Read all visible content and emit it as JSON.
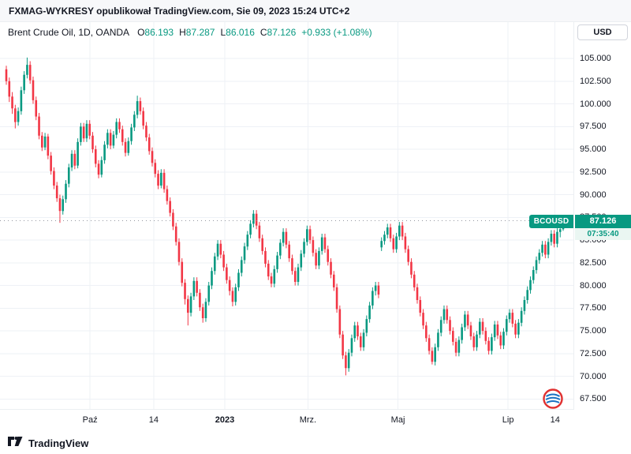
{
  "header": {
    "text": "FXMAG-WYKRESY opublikował TradingView.com, Sie 09, 2023 15:24 UTC+2"
  },
  "legend": {
    "symbol_title": "Brent Crude Oil, 1D, OANDA",
    "o_label": "O",
    "o_value": "86.193",
    "h_label": "H",
    "h_value": "87.287",
    "l_label": "L",
    "l_value": "86.016",
    "c_label": "C",
    "c_value": "87.126",
    "change": "+0.933 (+1.08%)"
  },
  "price_axis": {
    "currency": "USD",
    "ticks": [
      "105.000",
      "102.500",
      "100.000",
      "97.500",
      "95.000",
      "92.500",
      "90.000",
      "87.500",
      "85.000",
      "82.500",
      "80.000",
      "77.500",
      "75.000",
      "72.500",
      "70.000",
      "67.500"
    ]
  },
  "time_axis": {
    "labels": [
      {
        "text": "Paź",
        "x": 0.157,
        "bold": false
      },
      {
        "text": "14",
        "x": 0.268,
        "bold": false
      },
      {
        "text": "2023",
        "x": 0.392,
        "bold": true
      },
      {
        "text": "Mrz.",
        "x": 0.537,
        "bold": false
      },
      {
        "text": "Maj",
        "x": 0.694,
        "bold": false
      },
      {
        "text": "Lip",
        "x": 0.886,
        "bold": false
      },
      {
        "text": "14",
        "x": 0.968,
        "bold": false
      }
    ]
  },
  "price_label": {
    "symbol": "BCOUSD",
    "price": "87.126",
    "countdown": "07:35:40"
  },
  "footer": {
    "brand": "TradingView"
  },
  "colors": {
    "up": "#089981",
    "down": "#f23645",
    "grid": "#eef1f6",
    "last_line": "#9598a1"
  },
  "chart_data": {
    "type": "candlestick",
    "title": "Brent Crude Oil",
    "symbol": "BCOUSD",
    "interval": "1D",
    "exchange": "OANDA",
    "currency": "USD",
    "last_ohlc": {
      "open": 86.193,
      "high": 87.287,
      "low": 86.016,
      "close": 87.126,
      "change": 0.933,
      "change_pct": 1.08
    },
    "last_price": 87.126,
    "price_min": 66.4,
    "price_max": 109.0,
    "grid_step": 2.5,
    "ylim": [
      67.5,
      105.0
    ],
    "x_range_labels": [
      "Paź",
      "14",
      "2023",
      "Mrz.",
      "Maj",
      "Lip",
      "14"
    ],
    "candles": [
      [
        103.8,
        104.2,
        102.1,
        102.5
      ],
      [
        102.5,
        102.9,
        100.2,
        100.8
      ],
      [
        100.8,
        101.3,
        98.9,
        99.5
      ],
      [
        99.5,
        99.9,
        97.3,
        98.0
      ],
      [
        98.0,
        99.6,
        97.6,
        99.2
      ],
      [
        99.2,
        101.9,
        98.8,
        101.5
      ],
      [
        101.5,
        103.6,
        101.1,
        103.2
      ],
      [
        103.2,
        105.1,
        102.8,
        104.3
      ],
      [
        104.3,
        104.7,
        102.2,
        102.6
      ],
      [
        102.6,
        103.0,
        100.0,
        100.4
      ],
      [
        100.4,
        100.8,
        98.2,
        98.6
      ],
      [
        98.6,
        99.0,
        96.1,
        96.5
      ],
      [
        96.5,
        96.9,
        94.8,
        95.2
      ],
      [
        95.2,
        96.8,
        94.9,
        96.4
      ],
      [
        96.4,
        96.7,
        93.9,
        94.3
      ],
      [
        94.3,
        94.7,
        92.2,
        92.6
      ],
      [
        92.6,
        93.0,
        90.6,
        91.0
      ],
      [
        91.0,
        91.4,
        89.2,
        89.6
      ],
      [
        89.6,
        90.0,
        86.9,
        88.2
      ],
      [
        88.2,
        89.9,
        87.8,
        89.5
      ],
      [
        89.5,
        91.6,
        89.1,
        91.2
      ],
      [
        91.2,
        93.4,
        90.8,
        93.0
      ],
      [
        93.0,
        94.9,
        92.6,
        94.5
      ],
      [
        94.5,
        94.9,
        92.8,
        93.2
      ],
      [
        93.2,
        96.2,
        92.9,
        95.8
      ],
      [
        95.8,
        97.9,
        95.4,
        97.5
      ],
      [
        97.5,
        97.9,
        95.8,
        96.2
      ],
      [
        96.2,
        98.2,
        95.8,
        97.8
      ],
      [
        97.8,
        98.2,
        96.1,
        96.5
      ],
      [
        96.5,
        96.9,
        94.6,
        95.0
      ],
      [
        95.0,
        95.4,
        93.0,
        93.4
      ],
      [
        93.4,
        93.8,
        91.8,
        92.2
      ],
      [
        92.2,
        94.2,
        91.9,
        93.8
      ],
      [
        93.8,
        95.9,
        93.4,
        95.5
      ],
      [
        95.5,
        97.2,
        95.1,
        96.8
      ],
      [
        96.8,
        97.2,
        95.0,
        95.4
      ],
      [
        95.4,
        97.0,
        95.1,
        96.6
      ],
      [
        96.6,
        98.4,
        96.2,
        98.0
      ],
      [
        98.0,
        98.4,
        96.8,
        97.2
      ],
      [
        97.2,
        97.6,
        95.4,
        95.8
      ],
      [
        95.8,
        96.2,
        94.2,
        94.6
      ],
      [
        94.6,
        96.3,
        94.3,
        95.9
      ],
      [
        95.9,
        97.8,
        95.5,
        97.4
      ],
      [
        97.4,
        99.2,
        97.0,
        98.8
      ],
      [
        98.8,
        100.9,
        98.4,
        100.3
      ],
      [
        100.3,
        100.7,
        98.8,
        99.2
      ],
      [
        99.2,
        99.6,
        97.2,
        97.6
      ],
      [
        97.6,
        98.0,
        95.9,
        96.3
      ],
      [
        96.3,
        96.7,
        94.4,
        94.8
      ],
      [
        94.8,
        95.2,
        93.1,
        93.5
      ],
      [
        93.5,
        93.9,
        91.9,
        92.3
      ],
      [
        92.3,
        92.7,
        90.6,
        91.0
      ],
      [
        91.0,
        92.8,
        90.7,
        92.4
      ],
      [
        92.4,
        92.8,
        90.2,
        90.6
      ],
      [
        90.6,
        91.0,
        88.9,
        89.3
      ],
      [
        89.3,
        89.7,
        87.6,
        88.0
      ],
      [
        88.0,
        88.4,
        86.1,
        86.5
      ],
      [
        86.5,
        86.9,
        84.4,
        84.8
      ],
      [
        84.8,
        85.2,
        82.2,
        82.6
      ],
      [
        82.6,
        83.0,
        79.9,
        80.3
      ],
      [
        80.3,
        80.7,
        77.9,
        78.5
      ],
      [
        78.5,
        78.9,
        75.6,
        77.0
      ],
      [
        77.0,
        79.2,
        76.6,
        78.8
      ],
      [
        78.8,
        80.9,
        78.4,
        80.5
      ],
      [
        80.5,
        80.9,
        78.8,
        79.2
      ],
      [
        79.2,
        79.6,
        77.2,
        77.6
      ],
      [
        77.6,
        78.0,
        75.9,
        76.4
      ],
      [
        76.4,
        78.6,
        76.0,
        78.2
      ],
      [
        78.2,
        80.4,
        77.8,
        80.0
      ],
      [
        80.0,
        82.0,
        79.6,
        81.6
      ],
      [
        81.6,
        83.6,
        81.2,
        83.2
      ],
      [
        83.2,
        85.0,
        82.8,
        84.6
      ],
      [
        84.6,
        85.0,
        83.0,
        83.4
      ],
      [
        83.4,
        83.8,
        81.6,
        82.0
      ],
      [
        82.0,
        82.4,
        80.2,
        80.6
      ],
      [
        80.6,
        81.0,
        78.9,
        79.4
      ],
      [
        79.4,
        79.8,
        77.7,
        78.2
      ],
      [
        78.2,
        80.2,
        77.8,
        79.8
      ],
      [
        79.8,
        81.8,
        79.4,
        81.4
      ],
      [
        81.4,
        83.2,
        81.0,
        82.8
      ],
      [
        82.8,
        84.7,
        82.4,
        84.3
      ],
      [
        84.3,
        86.0,
        83.9,
        85.6
      ],
      [
        85.6,
        87.2,
        85.2,
        86.8
      ],
      [
        86.8,
        88.3,
        86.4,
        87.9
      ],
      [
        87.9,
        88.3,
        86.2,
        86.6
      ],
      [
        86.6,
        87.0,
        84.8,
        85.2
      ],
      [
        85.2,
        85.6,
        83.4,
        83.8
      ],
      [
        83.8,
        84.2,
        82.0,
        82.4
      ],
      [
        82.4,
        82.8,
        80.6,
        81.0
      ],
      [
        81.0,
        81.4,
        79.8,
        80.2
      ],
      [
        80.2,
        82.2,
        79.8,
        81.8
      ],
      [
        81.8,
        83.7,
        81.4,
        83.3
      ],
      [
        83.3,
        85.1,
        82.9,
        84.7
      ],
      [
        84.7,
        86.3,
        84.3,
        85.9
      ],
      [
        85.9,
        86.3,
        84.1,
        84.5
      ],
      [
        84.5,
        84.9,
        82.6,
        83.0
      ],
      [
        83.0,
        83.4,
        81.2,
        81.6
      ],
      [
        81.6,
        82.0,
        80.0,
        80.4
      ],
      [
        80.4,
        82.4,
        80.0,
        82.0
      ],
      [
        82.0,
        83.9,
        81.6,
        83.5
      ],
      [
        83.5,
        85.2,
        83.1,
        84.8
      ],
      [
        84.8,
        86.6,
        84.4,
        86.2
      ],
      [
        86.2,
        86.6,
        84.6,
        85.0
      ],
      [
        85.0,
        85.4,
        83.2,
        83.6
      ],
      [
        83.6,
        84.0,
        81.8,
        82.2
      ],
      [
        82.2,
        84.2,
        81.8,
        83.8
      ],
      [
        83.8,
        85.7,
        83.4,
        85.3
      ],
      [
        85.3,
        85.7,
        83.6,
        84.0
      ],
      [
        84.0,
        84.4,
        82.2,
        82.6
      ],
      [
        82.6,
        83.0,
        80.8,
        81.2
      ],
      [
        81.2,
        81.6,
        79.4,
        79.8
      ],
      [
        79.8,
        80.2,
        77.0,
        77.4
      ],
      [
        77.4,
        77.8,
        74.2,
        74.6
      ],
      [
        74.6,
        75.0,
        71.9,
        72.3
      ],
      [
        72.3,
        72.7,
        70.1,
        70.9
      ],
      [
        70.9,
        73.0,
        70.5,
        72.6
      ],
      [
        72.6,
        74.6,
        72.2,
        74.2
      ],
      [
        74.2,
        76.0,
        73.8,
        75.6
      ],
      [
        75.6,
        76.0,
        74.0,
        74.4
      ],
      [
        74.4,
        74.8,
        72.8,
        73.2
      ],
      [
        73.2,
        75.2,
        72.8,
        74.8
      ],
      [
        74.8,
        76.7,
        74.4,
        76.3
      ],
      [
        76.3,
        78.2,
        75.9,
        77.8
      ],
      [
        77.8,
        79.8,
        77.4,
        79.4
      ],
      [
        79.4,
        80.4,
        78.9,
        80.0
      ],
      [
        80.0,
        80.4,
        78.6,
        79.0
      ],
      [
        84.2,
        85.3,
        83.8,
        84.9
      ],
      [
        84.9,
        86.0,
        84.5,
        85.6
      ],
      [
        85.6,
        86.8,
        85.2,
        86.4
      ],
      [
        86.4,
        86.8,
        84.8,
        85.2
      ],
      [
        85.2,
        85.6,
        83.6,
        84.0
      ],
      [
        84.0,
        85.8,
        83.6,
        85.4
      ],
      [
        85.4,
        87.0,
        85.0,
        86.6
      ],
      [
        86.6,
        87.0,
        85.0,
        85.4
      ],
      [
        85.4,
        85.8,
        83.6,
        84.0
      ],
      [
        84.0,
        84.4,
        82.2,
        82.6
      ],
      [
        82.6,
        83.0,
        80.8,
        81.2
      ],
      [
        81.2,
        81.6,
        79.4,
        79.8
      ],
      [
        79.8,
        80.2,
        78.0,
        78.4
      ],
      [
        78.4,
        78.8,
        76.6,
        77.0
      ],
      [
        77.0,
        77.4,
        75.2,
        75.6
      ],
      [
        75.6,
        76.0,
        73.8,
        74.2
      ],
      [
        74.2,
        74.6,
        72.4,
        72.8
      ],
      [
        72.8,
        73.2,
        71.3,
        71.6
      ],
      [
        71.6,
        73.6,
        71.2,
        73.2
      ],
      [
        73.2,
        75.2,
        72.8,
        74.8
      ],
      [
        74.8,
        76.6,
        74.4,
        76.2
      ],
      [
        76.2,
        77.8,
        75.8,
        77.4
      ],
      [
        77.4,
        77.8,
        75.8,
        76.2
      ],
      [
        76.2,
        76.6,
        74.6,
        75.0
      ],
      [
        75.0,
        75.4,
        73.4,
        73.8
      ],
      [
        73.8,
        74.2,
        72.2,
        72.6
      ],
      [
        72.6,
        74.4,
        72.2,
        74.0
      ],
      [
        74.0,
        75.8,
        73.6,
        75.4
      ],
      [
        75.4,
        77.2,
        75.0,
        76.8
      ],
      [
        76.8,
        77.2,
        75.2,
        75.6
      ],
      [
        75.6,
        76.0,
        74.0,
        74.4
      ],
      [
        74.4,
        74.8,
        72.8,
        73.2
      ],
      [
        73.2,
        75.0,
        72.8,
        74.6
      ],
      [
        74.6,
        76.4,
        74.2,
        76.0
      ],
      [
        76.0,
        76.4,
        74.6,
        75.0
      ],
      [
        75.0,
        75.4,
        73.5,
        73.9
      ],
      [
        73.9,
        74.3,
        72.4,
        72.8
      ],
      [
        72.8,
        74.7,
        72.4,
        74.3
      ],
      [
        74.3,
        76.1,
        73.9,
        75.7
      ],
      [
        75.7,
        76.1,
        74.1,
        74.5
      ],
      [
        74.5,
        74.9,
        73.0,
        73.4
      ],
      [
        73.4,
        75.3,
        73.0,
        74.9
      ],
      [
        74.9,
        76.7,
        74.5,
        76.3
      ],
      [
        76.3,
        77.4,
        75.9,
        77.0
      ],
      [
        77.0,
        77.4,
        75.4,
        75.8
      ],
      [
        75.8,
        76.2,
        74.2,
        74.6
      ],
      [
        74.6,
        76.3,
        74.2,
        75.9
      ],
      [
        75.9,
        77.6,
        75.5,
        77.2
      ],
      [
        77.2,
        78.8,
        76.8,
        78.4
      ],
      [
        78.4,
        79.9,
        78.0,
        79.5
      ],
      [
        79.5,
        81.0,
        79.1,
        80.6
      ],
      [
        80.6,
        82.1,
        80.2,
        81.7
      ],
      [
        81.7,
        83.2,
        81.3,
        82.8
      ],
      [
        82.8,
        84.0,
        82.4,
        83.6
      ],
      [
        83.6,
        84.9,
        83.2,
        84.5
      ],
      [
        84.5,
        84.9,
        83.0,
        83.4
      ],
      [
        83.4,
        85.2,
        83.0,
        84.8
      ],
      [
        84.8,
        86.1,
        84.4,
        85.7
      ],
      [
        85.7,
        86.1,
        84.2,
        84.6
      ],
      [
        84.6,
        86.3,
        84.2,
        85.9
      ],
      [
        85.9,
        86.5,
        85.3,
        86.2
      ],
      [
        86.193,
        87.287,
        86.016,
        87.126
      ]
    ]
  }
}
